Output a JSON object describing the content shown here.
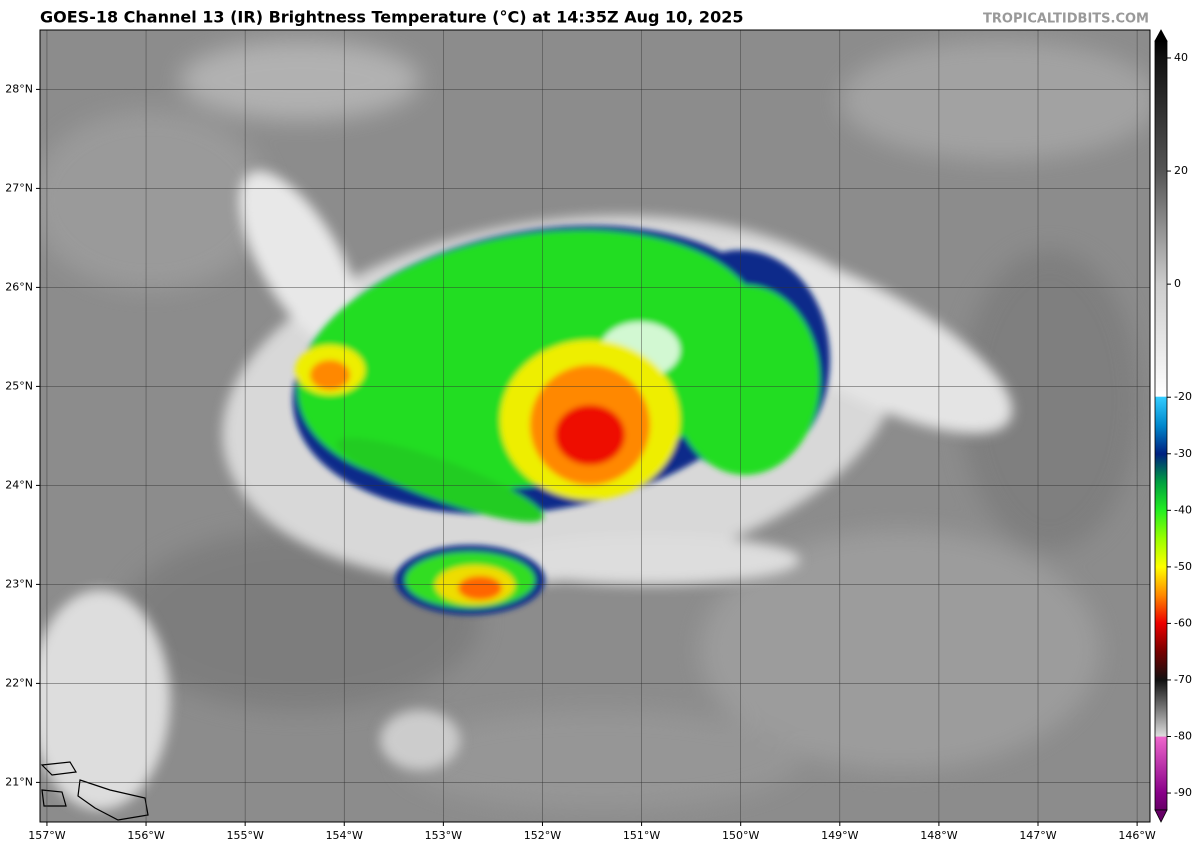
{
  "header": {
    "title": "GOES-18 Channel 13 (IR) Brightness Temperature (°C) at 14:35Z Aug 10, 2025",
    "credit": "TROPICALTIDBITS.COM"
  },
  "map": {
    "xlim": [
      -157.07,
      -145.87
    ],
    "ylim": [
      20.6,
      28.6
    ],
    "xticks": [
      {
        "value": -157,
        "label": "157°W"
      },
      {
        "value": -156,
        "label": "156°W"
      },
      {
        "value": -155,
        "label": "155°W"
      },
      {
        "value": -154,
        "label": "154°W"
      },
      {
        "value": -153,
        "label": "153°W"
      },
      {
        "value": -152,
        "label": "152°W"
      },
      {
        "value": -151,
        "label": "151°W"
      },
      {
        "value": -150,
        "label": "150°W"
      },
      {
        "value": -149,
        "label": "149°W"
      },
      {
        "value": -148,
        "label": "148°W"
      },
      {
        "value": -147,
        "label": "147°W"
      },
      {
        "value": -146,
        "label": "146°W"
      }
    ],
    "yticks": [
      {
        "value": 21,
        "label": "21°N"
      },
      {
        "value": 22,
        "label": "22°N"
      },
      {
        "value": 23,
        "label": "23°N"
      },
      {
        "value": 24,
        "label": "24°N"
      },
      {
        "value": 25,
        "label": "25°N"
      },
      {
        "value": 26,
        "label": "26°N"
      },
      {
        "value": 27,
        "label": "27°N"
      },
      {
        "value": 28,
        "label": "28°N"
      }
    ],
    "grid": true
  },
  "colorbar": {
    "lim": [
      -93,
      43
    ],
    "ticks": [
      40,
      20,
      0,
      -20,
      -30,
      -40,
      -50,
      -60,
      -70,
      -80,
      -90
    ]
  }
}
